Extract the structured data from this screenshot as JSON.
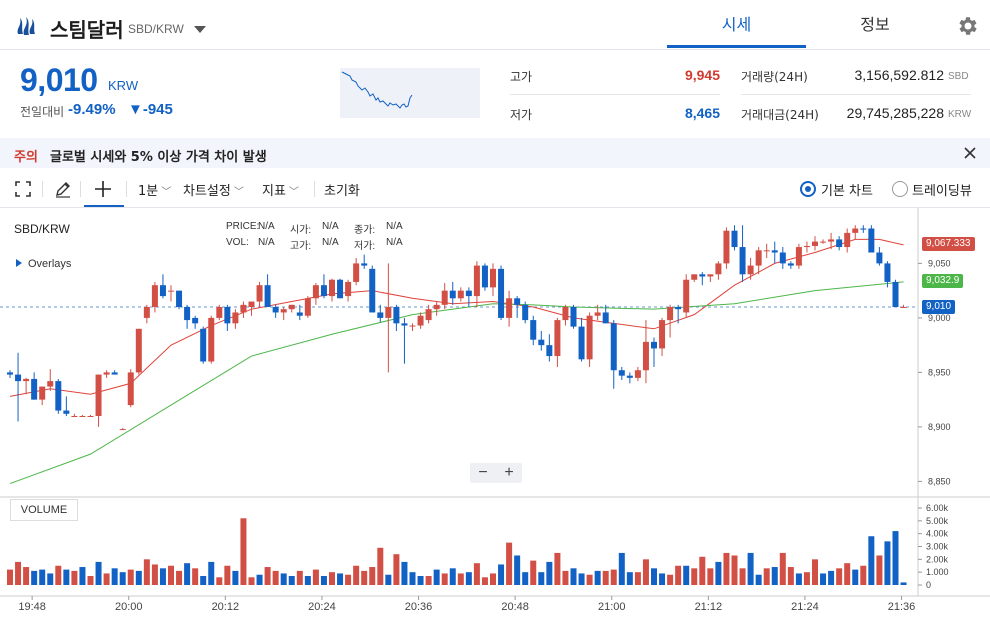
{
  "header": {
    "coin_name": "스팀달러",
    "pair": "SBD/KRW",
    "tabs": [
      {
        "label": "시세",
        "active": true
      },
      {
        "label": "정보",
        "active": false
      }
    ]
  },
  "price": {
    "current": "9,010",
    "unit": "KRW",
    "change_label": "전일대비",
    "change_rate": "-9.49%",
    "change_amount": "▼-945"
  },
  "stats": {
    "high_label": "고가",
    "high_value": "9,945",
    "low_label": "저가",
    "low_value": "8,465",
    "volume_label": "거래량(24H)",
    "volume_value": "3,156,592.812",
    "volume_unit": "SBD",
    "amount_label": "거래대금(24H)",
    "amount_value": "29,745,285,228",
    "amount_unit": "KRW"
  },
  "notice": {
    "tag": "주의",
    "text": "글로벌 시세와 5% 이상 가격 차이 발생"
  },
  "toolbar": {
    "interval": "1분",
    "settings": "차트설정",
    "indicators": "지표",
    "reset": "초기화",
    "view_basic": "기본 차트",
    "view_tradingview": "트레이딩뷰"
  },
  "chart_info": {
    "pair": "SBD/KRW",
    "overlays": "Overlays",
    "price_label": "PRICE:",
    "price_val": "N/A",
    "open_label": "시가:",
    "open_val": "N/A",
    "close_label": "종가:",
    "close_val": "N/A",
    "vol_label": "VOL:",
    "vol_val": "N/A",
    "high_label": "고가:",
    "high_val": "N/A",
    "low_label": "저가:",
    "low_val": "N/A",
    "volume_panel": "VOLUME",
    "tag_ma_short": "9,067.333",
    "tag_ma_long": "9,032.9",
    "tag_last": "9,010"
  },
  "chart_data": {
    "type": "candlestick",
    "up_color": "#d24f45",
    "down_color": "#1261c4",
    "ma_short_color": "#e0423a",
    "ma_long_color": "#4cb648",
    "y_ticks": [
      "9,050",
      "9,000",
      "8,950",
      "8,900",
      "8,850"
    ],
    "y_tick_values": [
      9050,
      9000,
      8950,
      8900,
      8850
    ],
    "volume_ticks": [
      "6.00k",
      "5.00k",
      "4.00k",
      "3.00k",
      "2.00k",
      "1.000",
      "0"
    ],
    "x_ticks": [
      "19:48",
      "20:00",
      "20:12",
      "20:24",
      "20:36",
      "20:48",
      "21:00",
      "21:12",
      "21:24",
      "21:36"
    ],
    "x_tick_minutes": [
      0,
      12,
      24,
      36,
      48,
      60,
      72,
      84,
      96,
      108
    ],
    "last_price": 9010,
    "ma_short_last": 9067.333,
    "ma_long_last": 9032.9,
    "candles": [
      [
        0,
        8950,
        8952,
        8945,
        8948
      ],
      [
        1,
        8948,
        8968,
        8905,
        8942
      ],
      [
        2,
        8942,
        8945,
        8930,
        8944
      ],
      [
        3,
        8944,
        8950,
        8925,
        8925
      ],
      [
        4,
        8925,
        8937,
        8920,
        8937
      ],
      [
        5,
        8937,
        8953,
        8933,
        8942
      ],
      [
        6,
        8942,
        8944,
        8912,
        8915
      ],
      [
        7,
        8915,
        8928,
        8910,
        8912
      ],
      [
        8,
        8910,
        8912,
        8910,
        8910
      ],
      [
        9,
        8910,
        8911,
        8910,
        8910
      ],
      [
        10,
        8910,
        8911,
        8910,
        8910
      ],
      [
        11,
        8910,
        8948,
        8900,
        8948
      ],
      [
        12,
        8948,
        8952,
        8945,
        8950
      ],
      [
        13,
        8950,
        8952,
        8948,
        8948
      ],
      [
        14,
        8898,
        8899,
        8898,
        8898
      ],
      [
        15,
        8920,
        8953,
        8918,
        8950
      ],
      [
        16,
        8950,
        8990,
        8948,
        8990
      ],
      [
        17,
        9000,
        9012,
        8995,
        9010
      ],
      [
        18,
        9010,
        9033,
        9005,
        9030
      ],
      [
        19,
        9030,
        9040,
        9018,
        9020
      ],
      [
        20,
        9025,
        9030,
        9015,
        9025
      ],
      [
        21,
        9025,
        9025,
        9008,
        9010
      ],
      [
        22,
        9010,
        9012,
        8990,
        8998
      ],
      [
        23,
        9000,
        9002,
        8990,
        8995
      ],
      [
        24,
        8990,
        8992,
        8958,
        8960
      ],
      [
        25,
        8960,
        9002,
        8958,
        9000
      ],
      [
        26,
        9000,
        9012,
        8998,
        9010
      ],
      [
        27,
        9010,
        9012,
        8988,
        8995
      ],
      [
        28,
        8995,
        9008,
        8990,
        9005
      ],
      [
        29,
        9005,
        9015,
        9000,
        9012
      ],
      [
        30,
        9010,
        9015,
        9002,
        9015
      ],
      [
        31,
        9015,
        9033,
        9010,
        9030
      ],
      [
        32,
        9030,
        9040,
        9010,
        9010
      ],
      [
        33,
        9010,
        9012,
        9000,
        9005
      ],
      [
        34,
        9005,
        9010,
        8998,
        9008
      ],
      [
        35,
        9008,
        9012,
        9005,
        9012
      ],
      [
        36,
        9005,
        9012,
        8998,
        9002
      ],
      [
        37,
        9002,
        9020,
        9000,
        9018
      ],
      [
        38,
        9018,
        9032,
        9012,
        9030
      ],
      [
        39,
        9030,
        9040,
        9018,
        9020
      ],
      [
        40,
        9020,
        9036,
        9015,
        9035
      ],
      [
        41,
        9035,
        9036,
        9018,
        9018
      ],
      [
        42,
        9020,
        9035,
        9015,
        9033
      ],
      [
        43,
        9033,
        9055,
        9030,
        9050
      ],
      [
        44,
        9050,
        9058,
        9045,
        9048
      ],
      [
        45,
        9045,
        9048,
        9005,
        9005
      ],
      [
        46,
        9005,
        9012,
        8996,
        9000
      ],
      [
        47,
        9000,
        9050,
        8950,
        9010
      ],
      [
        48,
        9010,
        9012,
        8988,
        8995
      ],
      [
        49,
        8995,
        9000,
        8958,
        8993
      ],
      [
        50,
        8993,
        8995,
        8988,
        8993
      ],
      [
        51,
        8993,
        9005,
        8990,
        9002
      ],
      [
        52,
        8998,
        9012,
        8995,
        9008
      ],
      [
        53,
        9008,
        9015,
        9002,
        9012
      ],
      [
        54,
        9012,
        9032,
        9008,
        9025
      ],
      [
        55,
        9025,
        9033,
        9012,
        9018
      ],
      [
        56,
        9018,
        9028,
        9015,
        9025
      ],
      [
        57,
        9025,
        9028,
        9010,
        9020
      ],
      [
        58,
        9020,
        9052,
        9010,
        9048
      ],
      [
        59,
        9048,
        9050,
        9025,
        9028
      ],
      [
        60,
        9028,
        9050,
        9020,
        9045
      ],
      [
        61,
        9045,
        9048,
        8998,
        9000
      ],
      [
        62,
        9000,
        9025,
        8992,
        9018
      ],
      [
        63,
        9018,
        9020,
        9000,
        9012
      ],
      [
        64,
        9012,
        9015,
        8995,
        8998
      ],
      [
        65,
        8998,
        9002,
        8975,
        8980
      ],
      [
        66,
        8980,
        8988,
        8970,
        8975
      ],
      [
        67,
        8975,
        8985,
        8960,
        8965
      ],
      [
        68,
        8965,
        9000,
        8955,
        8998
      ],
      [
        69,
        8998,
        9012,
        8993,
        9010
      ],
      [
        70,
        9010,
        9012,
        8990,
        8992
      ],
      [
        71,
        8992,
        9000,
        8960,
        8962
      ],
      [
        72,
        8962,
        9005,
        8955,
        9002
      ],
      [
        73,
        9002,
        9012,
        8998,
        9005
      ],
      [
        74,
        9005,
        9012,
        8995,
        8995
      ],
      [
        75,
        8995,
        8998,
        8935,
        8952
      ],
      [
        76,
        8952,
        8955,
        8943,
        8947
      ],
      [
        77,
        8947,
        8950,
        8940,
        8945
      ],
      [
        78,
        8945,
        8955,
        8942,
        8952
      ],
      [
        79,
        8952,
        8998,
        8940,
        8978
      ],
      [
        80,
        8978,
        8982,
        8955,
        8972
      ],
      [
        81,
        8972,
        9000,
        8965,
        8998
      ],
      [
        82,
        8998,
        9012,
        8982,
        9010
      ],
      [
        83,
        9010,
        9012,
        8995,
        9008
      ],
      [
        84,
        9005,
        9040,
        9000,
        9035
      ],
      [
        85,
        9035,
        9040,
        9033,
        9040
      ],
      [
        86,
        9040,
        9042,
        9030,
        9038
      ],
      [
        87,
        9038,
        9040,
        9033,
        9040
      ],
      [
        88,
        9040,
        9052,
        9035,
        9050
      ],
      [
        89,
        9050,
        9083,
        9045,
        9080
      ],
      [
        90,
        9080,
        9085,
        9062,
        9065
      ],
      [
        91,
        9065,
        9085,
        9033,
        9040
      ],
      [
        92,
        9040,
        9055,
        9035,
        9048
      ],
      [
        93,
        9048,
        9065,
        9040,
        9062
      ],
      [
        94,
        9062,
        9068,
        9055,
        9062
      ],
      [
        95,
        9062,
        9070,
        9050,
        9060
      ],
      [
        96,
        9060,
        9065,
        9045,
        9050
      ],
      [
        97,
        9050,
        9052,
        9045,
        9048
      ],
      [
        98,
        9048,
        9068,
        9045,
        9065
      ],
      [
        99,
        9065,
        9070,
        9060,
        9066
      ],
      [
        100,
        9066,
        9075,
        9062,
        9070
      ],
      [
        101,
        9070,
        9072,
        9068,
        9070
      ],
      [
        102,
        9070,
        9078,
        9063,
        9072
      ],
      [
        103,
        9072,
        9075,
        9062,
        9065
      ],
      [
        104,
        9065,
        9082,
        9060,
        9078
      ],
      [
        105,
        9078,
        9085,
        9072,
        9082
      ],
      [
        106,
        9082,
        9085,
        9078,
        9081
      ],
      [
        107,
        9082,
        9085,
        9060,
        9060
      ],
      [
        108,
        9060,
        9065,
        9048,
        9050
      ],
      [
        109,
        9050,
        9052,
        9028,
        9033
      ],
      [
        110,
        9033,
        9035,
        9010,
        9010
      ],
      [
        111,
        9010,
        9012,
        9010,
        9010
      ]
    ],
    "volumes": [
      [
        0,
        120,
        "up"
      ],
      [
        1,
        180,
        "up"
      ],
      [
        2,
        140,
        "up"
      ],
      [
        3,
        110,
        "down"
      ],
      [
        4,
        120,
        "down"
      ],
      [
        5,
        90,
        "down"
      ],
      [
        6,
        150,
        "up"
      ],
      [
        7,
        120,
        "down"
      ],
      [
        8,
        110,
        "up"
      ],
      [
        9,
        140,
        "down"
      ],
      [
        10,
        70,
        "up"
      ],
      [
        11,
        180,
        "down"
      ],
      [
        12,
        90,
        "up"
      ],
      [
        13,
        130,
        "down"
      ],
      [
        14,
        100,
        "down"
      ],
      [
        15,
        120,
        "up"
      ],
      [
        16,
        110,
        "down"
      ],
      [
        17,
        200,
        "up"
      ],
      [
        18,
        160,
        "up"
      ],
      [
        19,
        130,
        "down"
      ],
      [
        20,
        150,
        "up"
      ],
      [
        21,
        110,
        "up"
      ],
      [
        22,
        170,
        "down"
      ],
      [
        23,
        130,
        "up"
      ],
      [
        24,
        70,
        "down"
      ],
      [
        25,
        180,
        "down"
      ],
      [
        26,
        60,
        "up"
      ],
      [
        27,
        150,
        "up"
      ],
      [
        28,
        110,
        "down"
      ],
      [
        29,
        520,
        "up"
      ],
      [
        30,
        60,
        "up"
      ],
      [
        31,
        80,
        "down"
      ],
      [
        32,
        140,
        "up"
      ],
      [
        33,
        110,
        "up"
      ],
      [
        34,
        90,
        "down"
      ],
      [
        35,
        70,
        "down"
      ],
      [
        36,
        110,
        "up"
      ],
      [
        37,
        70,
        "down"
      ],
      [
        38,
        120,
        "up"
      ],
      [
        39,
        70,
        "down"
      ],
      [
        40,
        100,
        "up"
      ],
      [
        41,
        90,
        "down"
      ],
      [
        42,
        80,
        "up"
      ],
      [
        43,
        150,
        "up"
      ],
      [
        44,
        110,
        "up"
      ],
      [
        45,
        140,
        "up"
      ],
      [
        46,
        290,
        "up"
      ],
      [
        47,
        80,
        "down"
      ],
      [
        48,
        240,
        "up"
      ],
      [
        49,
        180,
        "down"
      ],
      [
        50,
        100,
        "down"
      ],
      [
        51,
        70,
        "down"
      ],
      [
        52,
        70,
        "up"
      ],
      [
        53,
        120,
        "down"
      ],
      [
        54,
        90,
        "up"
      ],
      [
        55,
        130,
        "down"
      ],
      [
        56,
        90,
        "up"
      ],
      [
        57,
        100,
        "down"
      ],
      [
        58,
        170,
        "up"
      ],
      [
        59,
        60,
        "up"
      ],
      [
        60,
        90,
        "up"
      ],
      [
        61,
        160,
        "down"
      ],
      [
        62,
        330,
        "up"
      ],
      [
        63,
        230,
        "down"
      ],
      [
        64,
        100,
        "down"
      ],
      [
        65,
        190,
        "up"
      ],
      [
        66,
        100,
        "down"
      ],
      [
        67,
        180,
        "down"
      ],
      [
        68,
        250,
        "up"
      ],
      [
        69,
        110,
        "up"
      ],
      [
        70,
        130,
        "down"
      ],
      [
        71,
        90,
        "down"
      ],
      [
        72,
        80,
        "up"
      ],
      [
        73,
        110,
        "down"
      ],
      [
        74,
        110,
        "up"
      ],
      [
        75,
        120,
        "up"
      ],
      [
        76,
        250,
        "down"
      ],
      [
        77,
        100,
        "down"
      ],
      [
        78,
        100,
        "up"
      ],
      [
        79,
        200,
        "up"
      ],
      [
        80,
        130,
        "down"
      ],
      [
        81,
        90,
        "down"
      ],
      [
        82,
        80,
        "up"
      ],
      [
        83,
        150,
        "up"
      ],
      [
        84,
        150,
        "down"
      ],
      [
        85,
        130,
        "up"
      ],
      [
        86,
        220,
        "up"
      ],
      [
        87,
        130,
        "up"
      ],
      [
        88,
        180,
        "down"
      ],
      [
        89,
        250,
        "up"
      ],
      [
        90,
        230,
        "up"
      ],
      [
        91,
        130,
        "up"
      ],
      [
        92,
        250,
        "down"
      ],
      [
        93,
        80,
        "down"
      ],
      [
        94,
        130,
        "up"
      ],
      [
        95,
        140,
        "down"
      ],
      [
        96,
        250,
        "up"
      ],
      [
        97,
        140,
        "up"
      ],
      [
        98,
        90,
        "down"
      ],
      [
        99,
        100,
        "up"
      ],
      [
        100,
        200,
        "up"
      ],
      [
        101,
        90,
        "down"
      ],
      [
        102,
        110,
        "down"
      ],
      [
        103,
        130,
        "up"
      ],
      [
        104,
        170,
        "up"
      ],
      [
        105,
        120,
        "down"
      ],
      [
        106,
        150,
        "up"
      ],
      [
        107,
        380,
        "down"
      ],
      [
        108,
        230,
        "up"
      ],
      [
        109,
        340,
        "down"
      ],
      [
        110,
        420,
        "down"
      ],
      [
        111,
        20,
        "down"
      ]
    ],
    "ma_short": [
      [
        0,
        8928
      ],
      [
        5,
        8935
      ],
      [
        10,
        8930
      ],
      [
        15,
        8940
      ],
      [
        20,
        8975
      ],
      [
        25,
        8993
      ],
      [
        30,
        9008
      ],
      [
        35,
        9015
      ],
      [
        40,
        9022
      ],
      [
        45,
        9025
      ],
      [
        50,
        9018
      ],
      [
        55,
        9013
      ],
      [
        60,
        9015
      ],
      [
        65,
        9010
      ],
      [
        70,
        9000
      ],
      [
        75,
        8995
      ],
      [
        80,
        8990
      ],
      [
        85,
        9003
      ],
      [
        90,
        9030
      ],
      [
        95,
        9050
      ],
      [
        100,
        9060
      ],
      [
        105,
        9072
      ],
      [
        108,
        9072
      ],
      [
        111,
        9067
      ]
    ],
    "ma_long": [
      [
        0,
        8848
      ],
      [
        10,
        8875
      ],
      [
        20,
        8920
      ],
      [
        30,
        8965
      ],
      [
        40,
        8985
      ],
      [
        50,
        9003
      ],
      [
        60,
        9013
      ],
      [
        65,
        9012
      ],
      [
        70,
        9010
      ],
      [
        80,
        9008
      ],
      [
        90,
        9013
      ],
      [
        100,
        9025
      ],
      [
        111,
        9033
      ]
    ]
  }
}
